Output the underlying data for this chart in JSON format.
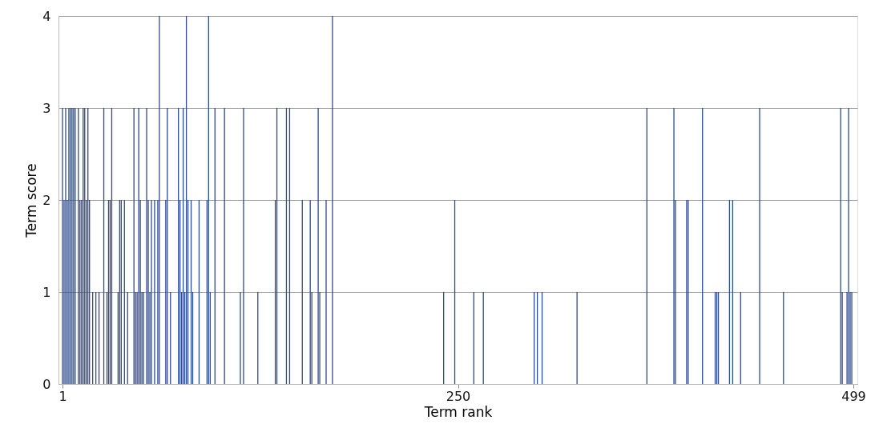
{
  "chart_data": {
    "type": "bar",
    "xlabel": "Term rank",
    "ylabel": "Term score",
    "x": [
      1,
      2,
      3,
      4,
      5,
      6,
      7,
      8,
      9,
      11,
      12,
      13,
      14,
      15,
      16,
      17,
      18,
      20,
      22,
      24,
      27,
      29,
      30,
      31,
      32,
      36,
      37,
      38,
      40,
      42,
      46,
      47,
      48,
      49,
      50,
      51,
      52,
      54,
      55,
      56,
      57,
      59,
      61,
      62,
      66,
      67,
      69,
      74,
      75,
      76,
      77,
      78,
      79,
      80,
      82,
      83,
      87,
      92,
      93,
      94,
      97,
      103,
      113,
      115,
      124,
      135,
      136,
      142,
      144,
      152,
      157,
      158,
      162,
      163,
      167,
      171,
      241,
      248,
      260,
      266,
      298,
      300,
      303,
      325,
      369,
      386,
      387,
      394,
      395,
      404,
      412,
      413,
      414,
      421,
      423,
      428,
      440,
      455,
      491,
      492,
      495,
      496,
      497,
      498
    ],
    "values": [
      3,
      2,
      3,
      2,
      3,
      3,
      3,
      3,
      3,
      3,
      2,
      2,
      3,
      3,
      2,
      3,
      2,
      1,
      1,
      1,
      3,
      1,
      2,
      2,
      3,
      1,
      2,
      2,
      2,
      1,
      3,
      1,
      1,
      3,
      2,
      1,
      1,
      3,
      2,
      1,
      2,
      2,
      2,
      4,
      2,
      3,
      1,
      3,
      2,
      1,
      3,
      1,
      4,
      2,
      2,
      1,
      2,
      2,
      4,
      1,
      3,
      3,
      1,
      3,
      1,
      2,
      3,
      3,
      3,
      2,
      2,
      1,
      3,
      1,
      2,
      4,
      1,
      2,
      1,
      1,
      1,
      1,
      1,
      1,
      3,
      3,
      2,
      2,
      2,
      3,
      1,
      1,
      1,
      2,
      2,
      1,
      3,
      1,
      3,
      1,
      1,
      3,
      1,
      1
    ],
    "color": "#2f4b8f",
    "xlim": [
      1,
      499
    ],
    "xticks": [
      1,
      250,
      499
    ],
    "ylim": [
      0,
      4
    ],
    "yticks": [
      0,
      1,
      2,
      3,
      4
    ],
    "grid": "y"
  }
}
